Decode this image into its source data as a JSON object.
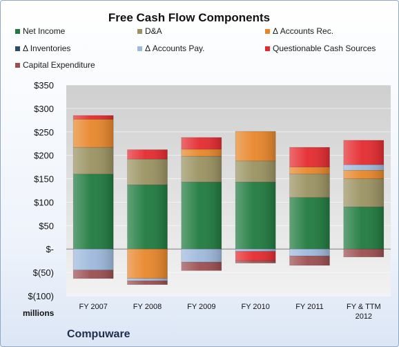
{
  "chart_data": {
    "type": "bar",
    "stacked": true,
    "title": "Free Cash Flow Components",
    "company": "Compuware",
    "unit_label": "millions",
    "categories": [
      "FY 2007",
      "FY 2008",
      "FY 2009",
      "FY 2010",
      "FY 2011",
      "FY & TTM 2012"
    ],
    "category_labels": [
      [
        "FY 2007"
      ],
      [
        "FY 2008"
      ],
      [
        "FY 2009"
      ],
      [
        "FY 2010"
      ],
      [
        "FY 2011"
      ],
      [
        "FY & TTM",
        "2012"
      ]
    ],
    "ylim": [
      -100,
      350
    ],
    "yticks": [
      350,
      300,
      250,
      200,
      150,
      100,
      50,
      0,
      -50,
      -100
    ],
    "ytick_labels": [
      "$350",
      "$300",
      "$250",
      "$200",
      "$150",
      "$100",
      "$50",
      "$-",
      "$(50)",
      "$(100)"
    ],
    "grid": true,
    "legend_position": "top",
    "series": [
      {
        "name": "Net Income",
        "color": "#1f7a3f",
        "values": [
          160,
          137,
          143,
          143,
          110,
          90
        ]
      },
      {
        "name": "D&A",
        "color": "#9a9261",
        "values": [
          57,
          55,
          55,
          45,
          50,
          60
        ]
      },
      {
        "name": "Δ Accounts Rec.",
        "color": "#e8862a",
        "values": [
          60,
          -63,
          15,
          63,
          15,
          18
        ]
      },
      {
        "name": "Δ Inventories",
        "color": "#2d4a68",
        "values": [
          0,
          0,
          0,
          0,
          0,
          0
        ]
      },
      {
        "name": "Δ Accounts Pay.",
        "color": "#9eb9dc",
        "values": [
          -45,
          -5,
          -28,
          -5,
          -15,
          12
        ]
      },
      {
        "name": "Questionable Cash Sources",
        "color": "#e52a2f",
        "values": [
          8,
          20,
          25,
          -20,
          42,
          52
        ]
      },
      {
        "name": "Capital Expenditure",
        "color": "#9c4e50",
        "values": [
          -18,
          -8,
          -18,
          -5,
          -20,
          -17
        ]
      }
    ]
  }
}
